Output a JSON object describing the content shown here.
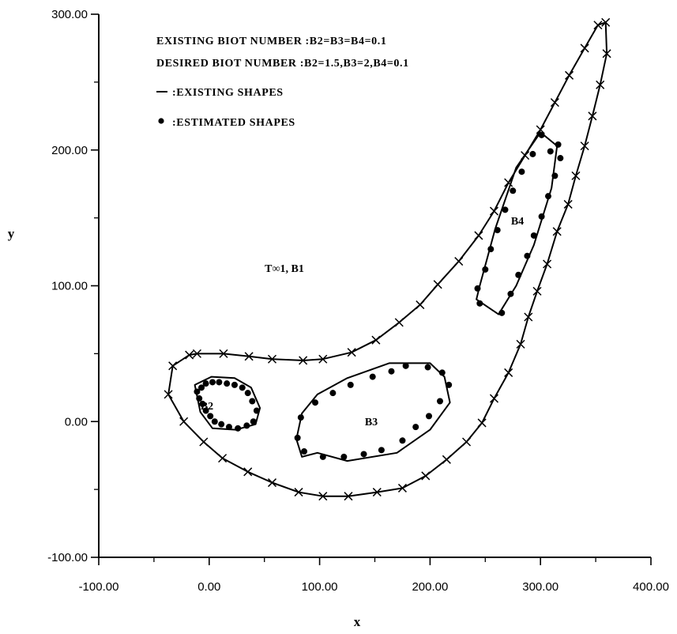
{
  "chart_data": {
    "type": "scatter",
    "xlabel": "x",
    "ylabel": "y",
    "xlim": [
      -100,
      400
    ],
    "ylim": [
      -100,
      300
    ],
    "x_ticks": [
      {
        "value": -100,
        "label": "-100.00"
      },
      {
        "value": 0,
        "label": "0.00"
      },
      {
        "value": 100,
        "label": "100.00"
      },
      {
        "value": 200,
        "label": "200.00"
      },
      {
        "value": 300,
        "label": "300.00"
      },
      {
        "value": 400,
        "label": "400.00"
      }
    ],
    "y_ticks": [
      {
        "value": -100,
        "label": "-100.00"
      },
      {
        "value": 0,
        "label": "0.00"
      },
      {
        "value": 100,
        "label": "100.00"
      },
      {
        "value": 200,
        "label": "200.00"
      },
      {
        "value": 300,
        "label": "300.00"
      }
    ],
    "grid": false,
    "legend_position": "top-left",
    "legend": [
      {
        "symbol": "",
        "text": "EXISTING BIOT NUMBER :B2=B3=B4=0.1"
      },
      {
        "symbol": "",
        "text": "DESIRED BIOT NUMBER :B2=1.5,B3=2,B4=0.1"
      },
      {
        "symbol": "line",
        "text": ":EXISTING SHAPES"
      },
      {
        "symbol": "dot",
        "text": ":ESTIMATED SHAPES"
      }
    ],
    "annotations": [
      {
        "text": "B2",
        "x": 9,
        "y": 10
      },
      {
        "text": "B3",
        "x": 129,
        "y": -6
      },
      {
        "text": "B4",
        "x": 280,
        "y": 148
      },
      {
        "text": "T∞1, B1",
        "x": 53,
        "y": 112
      }
    ],
    "series": [
      {
        "role": "outer-boundary",
        "marker": "x",
        "points": [
          [
            -37,
            20
          ],
          [
            -33,
            41
          ],
          [
            -18,
            49
          ],
          [
            -11,
            50
          ],
          [
            13,
            50
          ],
          [
            36,
            48
          ],
          [
            57,
            46
          ],
          [
            85,
            45
          ],
          [
            103,
            46
          ],
          [
            129,
            51
          ],
          [
            151,
            60
          ],
          [
            172,
            73
          ],
          [
            191,
            86
          ],
          [
            207,
            101
          ],
          [
            226,
            118
          ],
          [
            244,
            137
          ],
          [
            258,
            155
          ],
          [
            271,
            176
          ],
          [
            286,
            196
          ],
          [
            300,
            215
          ],
          [
            313,
            235
          ],
          [
            326,
            255
          ],
          [
            340,
            275
          ],
          [
            352,
            292
          ],
          [
            359,
            294
          ],
          [
            360,
            271
          ],
          [
            354,
            248
          ],
          [
            347,
            225
          ],
          [
            340,
            203
          ],
          [
            332,
            181
          ],
          [
            325,
            160
          ],
          [
            315,
            140
          ],
          [
            306,
            116
          ],
          [
            297,
            96
          ],
          [
            289,
            77
          ],
          [
            282,
            57
          ],
          [
            271,
            36
          ],
          [
            258,
            17
          ],
          [
            247,
            -1
          ],
          [
            233,
            -15
          ],
          [
            215,
            -28
          ],
          [
            196,
            -40
          ],
          [
            175,
            -49
          ],
          [
            152,
            -52
          ],
          [
            126,
            -55
          ],
          [
            103,
            -55
          ],
          [
            81,
            -52
          ],
          [
            57,
            -45
          ],
          [
            35,
            -37
          ],
          [
            12,
            -27
          ],
          [
            -5,
            -15
          ],
          [
            -23,
            0
          ]
        ]
      },
      {
        "role": "existing-shape-B2",
        "marker": "none",
        "points": [
          [
            -13,
            27
          ],
          [
            2,
            33
          ],
          [
            23,
            32
          ],
          [
            38,
            25
          ],
          [
            46,
            10
          ],
          [
            42,
            -2
          ],
          [
            24,
            -6
          ],
          [
            3,
            -5
          ],
          [
            -8,
            7
          ]
        ]
      },
      {
        "role": "estimated-shape-B2",
        "marker": "dot",
        "points": [
          [
            -11,
            22
          ],
          [
            -7,
            25
          ],
          [
            -3,
            28
          ],
          [
            3,
            29
          ],
          [
            9,
            29
          ],
          [
            16,
            28
          ],
          [
            23,
            27
          ],
          [
            30,
            25
          ],
          [
            35,
            21
          ],
          [
            39,
            15
          ],
          [
            43,
            8
          ],
          [
            40,
            0
          ],
          [
            34,
            -3
          ],
          [
            26,
            -5
          ],
          [
            18,
            -4
          ],
          [
            11,
            -2
          ],
          [
            5,
            0
          ],
          [
            1,
            4
          ],
          [
            -3,
            8
          ],
          [
            -6,
            13
          ],
          [
            -9,
            17
          ]
        ]
      },
      {
        "role": "existing-shape-B3",
        "marker": "none",
        "points": [
          [
            79,
            -13
          ],
          [
            84,
            6
          ],
          [
            98,
            20
          ],
          [
            125,
            32
          ],
          [
            163,
            43
          ],
          [
            200,
            43
          ],
          [
            213,
            33
          ],
          [
            218,
            14
          ],
          [
            200,
            -6
          ],
          [
            170,
            -23
          ],
          [
            125,
            -29
          ],
          [
            98,
            -23
          ],
          [
            84,
            -26
          ]
        ]
      },
      {
        "role": "estimated-shape-B3",
        "marker": "dot",
        "points": [
          [
            80,
            -12
          ],
          [
            83,
            3
          ],
          [
            96,
            14
          ],
          [
            112,
            21
          ],
          [
            128,
            27
          ],
          [
            148,
            33
          ],
          [
            165,
            37
          ],
          [
            178,
            41
          ],
          [
            198,
            40
          ],
          [
            211,
            36
          ],
          [
            217,
            27
          ],
          [
            209,
            15
          ],
          [
            199,
            4
          ],
          [
            187,
            -4
          ],
          [
            175,
            -14
          ],
          [
            156,
            -21
          ],
          [
            140,
            -24
          ],
          [
            122,
            -26
          ],
          [
            103,
            -26
          ],
          [
            86,
            -22
          ]
        ]
      },
      {
        "role": "existing-shape-B4",
        "marker": "none",
        "points": [
          [
            242,
            90
          ],
          [
            245,
            100
          ],
          [
            259,
            142
          ],
          [
            278,
            187
          ],
          [
            300,
            213
          ],
          [
            315,
            203
          ],
          [
            310,
            172
          ],
          [
            294,
            130
          ],
          [
            278,
            100
          ],
          [
            262,
            79
          ]
        ]
      },
      {
        "role": "estimated-shape-B4",
        "marker": "dot",
        "points": [
          [
            243,
            98
          ],
          [
            245,
            87
          ],
          [
            250,
            112
          ],
          [
            255,
            127
          ],
          [
            261,
            141
          ],
          [
            268,
            156
          ],
          [
            275,
            170
          ],
          [
            283,
            184
          ],
          [
            293,
            197
          ],
          [
            301,
            211
          ],
          [
            309,
            199
          ],
          [
            316,
            204
          ],
          [
            318,
            194
          ],
          [
            313,
            181
          ],
          [
            307,
            166
          ],
          [
            301,
            151
          ],
          [
            294,
            137
          ],
          [
            288,
            122
          ],
          [
            280,
            108
          ],
          [
            273,
            94
          ],
          [
            265,
            80
          ]
        ]
      }
    ]
  }
}
